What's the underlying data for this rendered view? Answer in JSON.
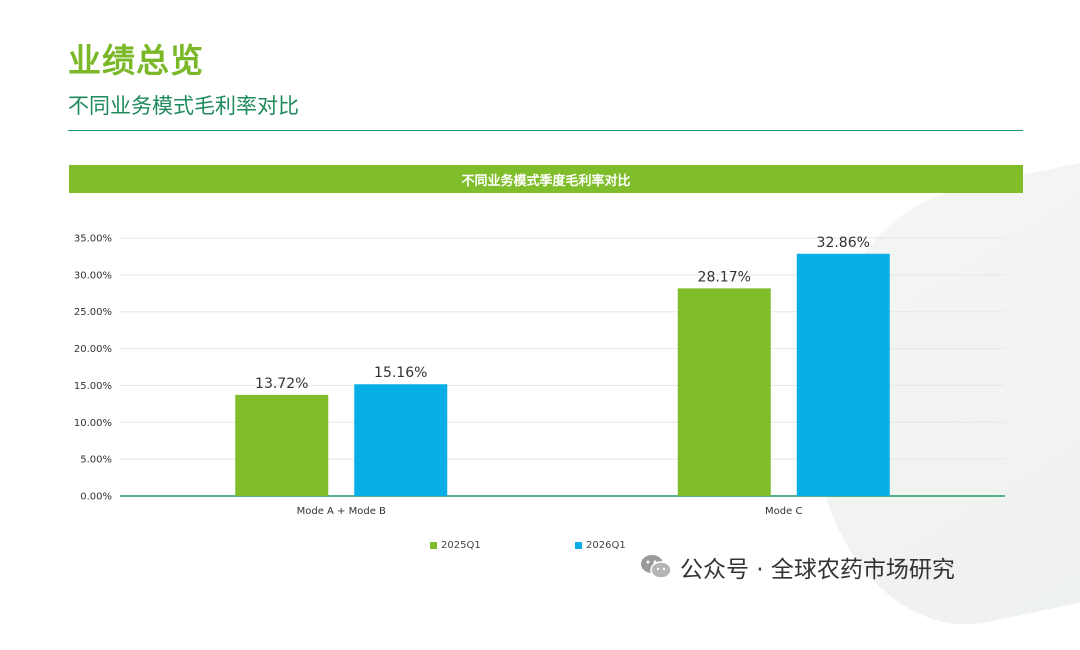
{
  "header": {
    "title": "业绩总览",
    "subtitle": "不同业务模式毛利率对比"
  },
  "colors": {
    "accent_green": "#80bd2b",
    "series_2025": "#80bd2b",
    "series_2026": "#0aaee6",
    "title_green": "#7ab828",
    "subtitle_green": "#1f8a5b"
  },
  "chart_data": {
    "type": "bar",
    "title": "不同业务模式季度毛利率对比",
    "categories": [
      "Mode A + Mode B",
      "Mode C"
    ],
    "series": [
      {
        "name": "2025Q1",
        "values": [
          13.72,
          28.17
        ],
        "labels": [
          "13.72%",
          "28.17%"
        ],
        "color": "#80bd2b"
      },
      {
        "name": "2026Q1",
        "values": [
          15.16,
          32.86
        ],
        "labels": [
          "15.16%",
          "32.86%"
        ],
        "color": "#0aaee6"
      }
    ],
    "ylim": [
      0,
      35
    ],
    "yticks": [
      "0.00%",
      "5.00%",
      "10.00%",
      "15.00%",
      "20.00%",
      "25.00%",
      "30.00%",
      "35.00%"
    ],
    "grid": true,
    "legend": "bottom-center"
  },
  "watermark": {
    "icon": "wechat-icon",
    "text": "公众号 · 全球农药市场研究"
  }
}
